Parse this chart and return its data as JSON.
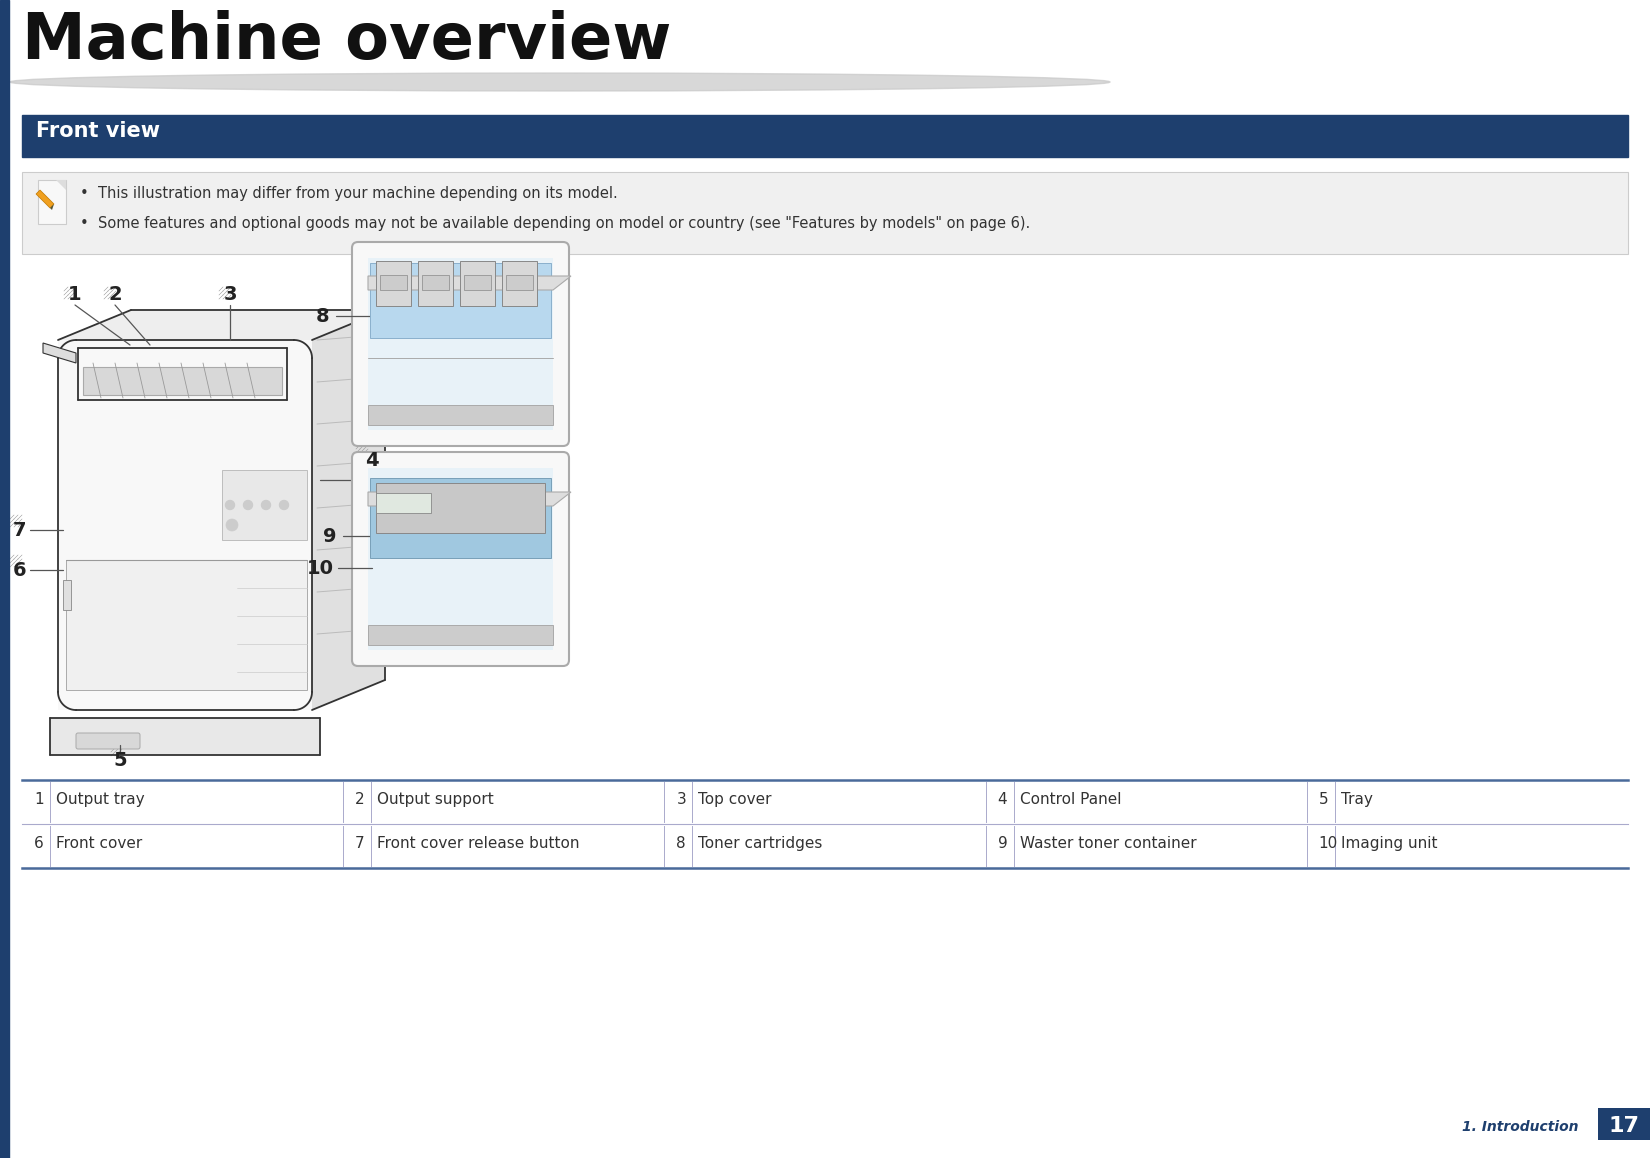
{
  "title": "Machine overview",
  "section_title": "Front view",
  "page_label": "1. Introduction",
  "page_number": "17",
  "note_lines": [
    "This illustration may differ from your machine depending on its model.",
    "Some features and optional goods may not be available depending on model or country (see \"Features by models\" on page 6)."
  ],
  "table_rows": [
    [
      [
        "1",
        "Output tray"
      ],
      [
        "2",
        "Output support"
      ],
      [
        "3",
        "Top cover"
      ],
      [
        "4",
        "Control Panel"
      ],
      [
        "5",
        "Tray"
      ]
    ],
    [
      [
        "6",
        "Front cover"
      ],
      [
        "7",
        "Front cover release button"
      ],
      [
        "8",
        "Toner cartridges"
      ],
      [
        "9",
        "Waster toner container"
      ],
      [
        "10",
        "Imaging unit"
      ]
    ]
  ],
  "title_bar_color": "#1e3f6e",
  "title_bar_text_color": "#ffffff",
  "bg_color": "#ffffff",
  "note_bg_color": "#f0f0f0",
  "label_color": "#333333",
  "table_line_color": "#aaaacc",
  "sidebar_color": "#1e3f6e",
  "footer_bg": "#1e3f6e",
  "line_color": "#333333",
  "label_number_color": "#222222"
}
